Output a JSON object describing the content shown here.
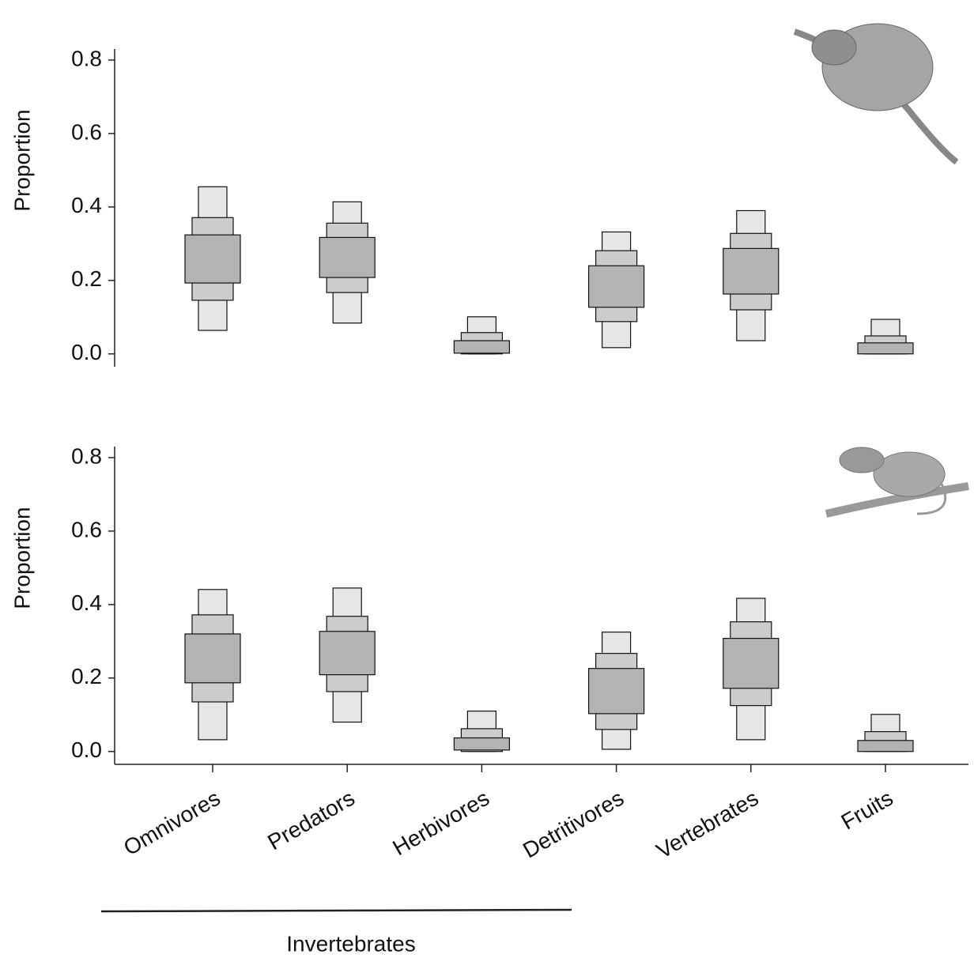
{
  "chart_data": [
    {
      "type": "interval",
      "ylabel": "Proportion",
      "ylim": [
        -0.035,
        0.83
      ],
      "yticks": [
        {
          "value": 0,
          "label": "0.0"
        },
        0.2,
        0.4,
        0.6,
        0.8
      ],
      "intervals": [
        {
          "color": "#e6e6e6",
          "low": [
            0.064,
            0.084,
            0,
            0.017,
            0.036,
            0
          ],
          "high": [
            0.455,
            0.414,
            0.101,
            0.332,
            0.39,
            0.094
          ]
        },
        {
          "color": "#cccccc",
          "low": [
            0.146,
            0.167,
            0,
            0.088,
            0.12,
            0
          ],
          "high": [
            0.371,
            0.356,
            0.058,
            0.281,
            0.328,
            0.049
          ]
        },
        {
          "color": "#b3b3b3",
          "low": [
            0.193,
            0.208,
            0.002,
            0.127,
            0.163,
            0
          ],
          "high": [
            0.324,
            0.317,
            0.036,
            0.24,
            0.287,
            0.03
          ]
        }
      ]
    },
    {
      "type": "interval",
      "ylabel": "Proportion",
      "ylim": [
        -0.035,
        0.83
      ],
      "yticks": [
        {
          "value": 0,
          "label": "0.0"
        },
        0.2,
        0.4,
        0.6,
        0.8
      ],
      "categories": [
        "Omnivores",
        "Predators",
        "Herbivores",
        "Detritivores",
        "Vertebrates",
        "Fruits"
      ],
      "intervals": [
        {
          "color": "#e6e6e6",
          "low": [
            0.032,
            0.08,
            0,
            0.006,
            0.032,
            0
          ],
          "high": [
            0.441,
            0.445,
            0.11,
            0.325,
            0.417,
            0.101
          ]
        },
        {
          "color": "#cccccc",
          "low": [
            0.135,
            0.163,
            0,
            0.06,
            0.125,
            0
          ],
          "high": [
            0.372,
            0.368,
            0.062,
            0.267,
            0.353,
            0.054
          ]
        },
        {
          "color": "#b3b3b3",
          "low": [
            0.187,
            0.209,
            0.004,
            0.103,
            0.172,
            0
          ],
          "high": [
            0.32,
            0.327,
            0.037,
            0.226,
            0.308,
            0.03
          ]
        }
      ]
    }
  ],
  "annotations": {
    "group": "Invertebrates"
  }
}
